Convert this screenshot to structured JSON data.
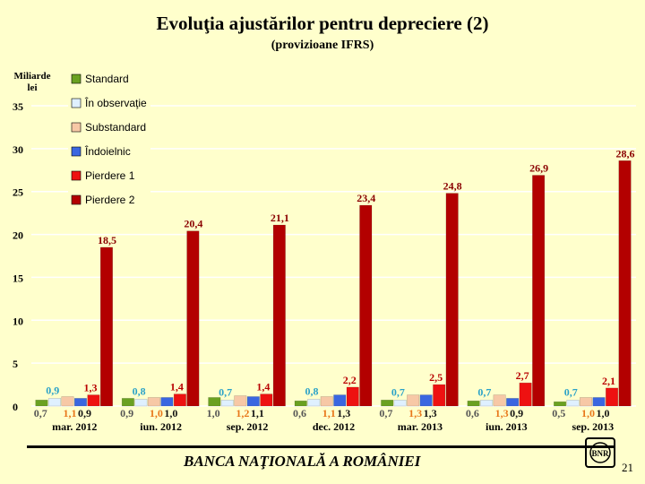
{
  "header": {
    "title": "Evoluţia ajustărilor pentru depreciere (2)",
    "subtitle": "(provizioane IFRS)"
  },
  "footer": {
    "text": "BANCA NAŢIONALĂ A ROMÂNIEI",
    "page_number": "21",
    "logo_text": "BNR"
  },
  "chart_data": {
    "type": "bar",
    "title": "Evoluţia ajustărilor pentru depreciere (2)",
    "subtitle": "(provizioane IFRS)",
    "ylabel": "Miliarde lei",
    "xlabel": "",
    "ylim": [
      0,
      35
    ],
    "yticks": [
      0,
      5,
      10,
      15,
      20,
      25,
      30,
      35
    ],
    "grid": true,
    "legend_position": "top-left",
    "categories": [
      "mar. 2012",
      "iun. 2012",
      "sep. 2012",
      "dec. 2012",
      "mar. 2013",
      "iun. 2013",
      "sep. 2013"
    ],
    "series": [
      {
        "name": "Standard",
        "color": "#6aa121",
        "values": [
          0.7,
          0.9,
          1.0,
          0.6,
          0.7,
          0.6,
          0.5
        ]
      },
      {
        "name": "În observaţie",
        "color": "#dff0ff",
        "values": [
          0.9,
          0.8,
          0.7,
          0.8,
          0.7,
          0.7,
          0.7
        ]
      },
      {
        "name": "Substandard",
        "color": "#f7c8a6",
        "values": [
          1.1,
          1.0,
          1.2,
          1.1,
          1.3,
          1.3,
          1.0
        ]
      },
      {
        "name": "Îndoielnic",
        "color": "#3a66e0",
        "values": [
          0.9,
          1.0,
          1.1,
          1.3,
          1.3,
          0.9,
          1.0
        ]
      },
      {
        "name": "Pierdere 1",
        "color": "#ee1111",
        "values": [
          1.3,
          1.4,
          1.4,
          2.2,
          2.5,
          2.7,
          2.1
        ]
      },
      {
        "name": "Pierdere 2",
        "color": "#b30000",
        "values": [
          18.5,
          20.4,
          21.1,
          23.4,
          24.8,
          26.9,
          28.6
        ]
      }
    ],
    "data_label_colors": {
      "Standard": "#555555",
      "În observaţie": "#2aa2c8",
      "Substandard": "#e8771a",
      "Îndoielnic": "#111111",
      "Pierdere 1": "#b80000",
      "Pierdere 2": "#8a0000"
    }
  }
}
